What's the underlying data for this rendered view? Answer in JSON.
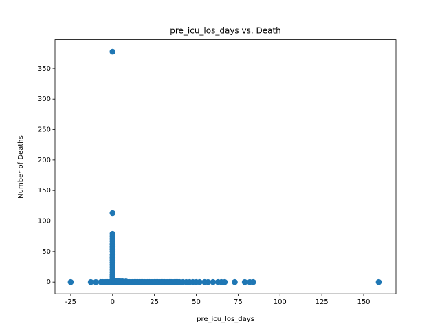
{
  "chart_data": {
    "type": "scatter",
    "title": "pre_icu_los_days vs. Death",
    "x_label": "pre_icu_los_days",
    "y_label": "Number of Deaths",
    "color": "#1f77b4",
    "x": [
      0,
      0,
      0,
      0,
      0,
      0,
      0,
      0,
      0,
      0,
      0,
      0,
      0,
      0,
      0,
      0,
      0,
      0,
      0,
      0,
      0,
      0,
      0,
      -25,
      -13,
      -10,
      -7,
      -6,
      -5,
      -4,
      -3,
      -2,
      -1,
      1,
      2,
      3,
      4,
      5,
      6,
      7,
      8,
      9,
      10,
      11,
      12,
      13,
      14,
      15,
      16,
      17,
      18,
      19,
      20,
      21,
      22,
      23,
      24,
      25,
      26,
      27,
      28,
      29,
      30,
      31,
      32,
      33,
      34,
      35,
      36,
      37,
      38,
      39,
      40,
      42,
      44,
      46,
      48,
      50,
      52,
      55,
      57,
      60,
      63,
      65,
      67,
      73,
      79,
      82,
      84,
      159,
      1,
      2,
      3,
      4,
      5,
      1,
      2,
      3,
      6,
      8
    ],
    "y": [
      378,
      113,
      79,
      75,
      71,
      67,
      62,
      58,
      54,
      50,
      45,
      40,
      36,
      32,
      28,
      24,
      20,
      16,
      12,
      9,
      6,
      3,
      0,
      0,
      0,
      0,
      0,
      0,
      0,
      0,
      0,
      0,
      0,
      0,
      0,
      0,
      0,
      0,
      0,
      0,
      0,
      0,
      0,
      0,
      0,
      0,
      0,
      0,
      0,
      0,
      0,
      0,
      0,
      0,
      0,
      0,
      0,
      0,
      0,
      0,
      0,
      0,
      0,
      0,
      0,
      0,
      0,
      0,
      0,
      0,
      0,
      0,
      0,
      0,
      0,
      0,
      0,
      0,
      0,
      0,
      0,
      0,
      0,
      0,
      0,
      0,
      0,
      0,
      0,
      0,
      1,
      1,
      1,
      1,
      1,
      2,
      2,
      2,
      1,
      1
    ],
    "xlim": [
      -34.4,
      169.3
    ],
    "ylim": [
      -19.2,
      397.7
    ],
    "xticks": [
      -25,
      0,
      25,
      50,
      75,
      100,
      125,
      150
    ],
    "yticks": [
      0,
      50,
      100,
      150,
      200,
      250,
      300,
      350
    ]
  }
}
